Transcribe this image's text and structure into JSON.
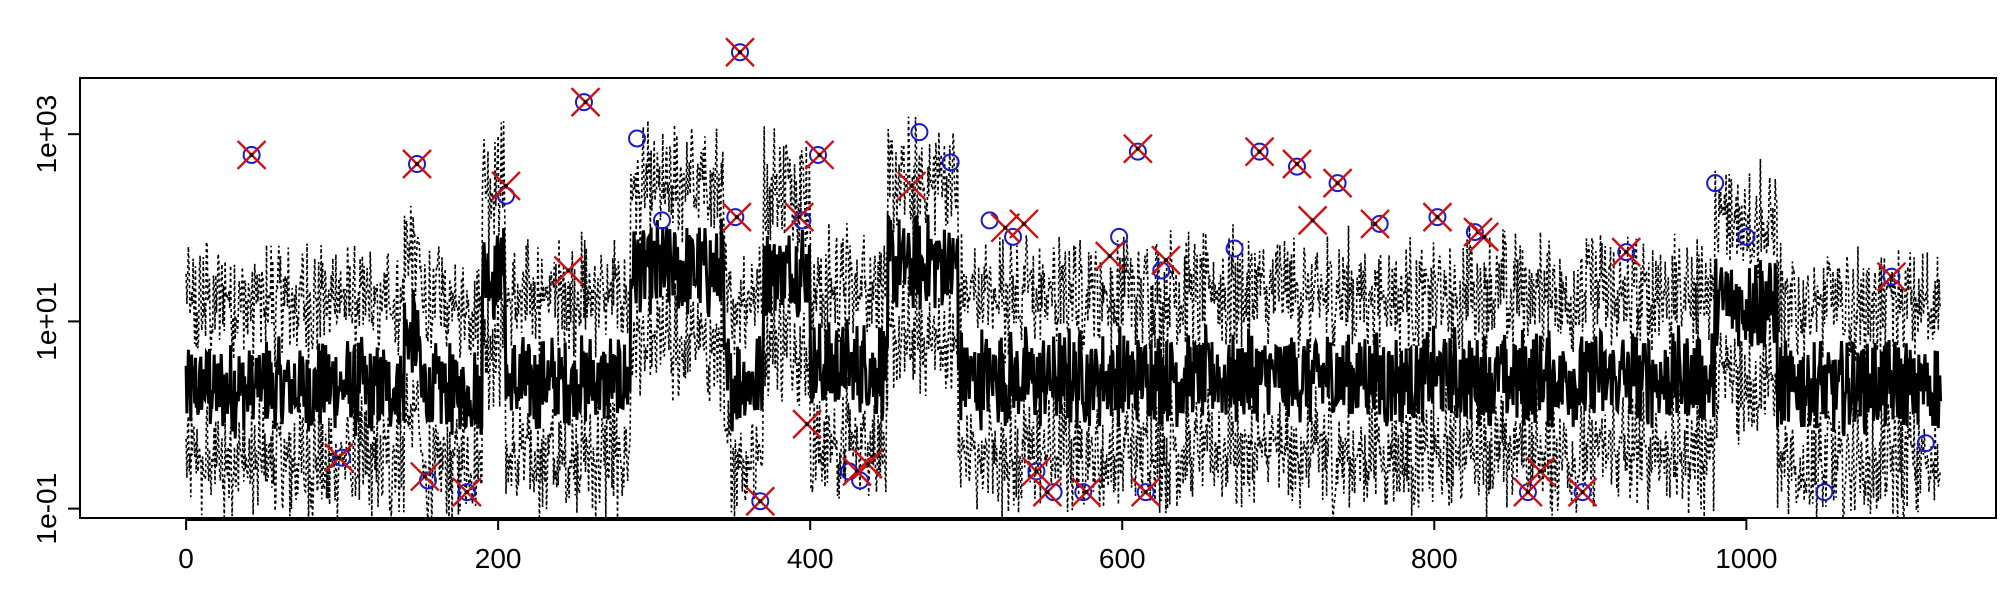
{
  "chart_data": {
    "type": "line",
    "title": "",
    "xlabel": "",
    "ylabel": "",
    "xlim": [
      -68,
      1160
    ],
    "ylim_log10": [
      -1.1,
      3.6
    ],
    "y_scale": "log",
    "x_ticks": [
      0,
      200,
      400,
      600,
      800,
      1000
    ],
    "x_tick_labels": [
      "0",
      "200",
      "400",
      "600",
      "800",
      "1000"
    ],
    "y_ticks": [
      0.1,
      10,
      1000
    ],
    "y_tick_labels": [
      "1e-01",
      "1e+01",
      "1e+03"
    ],
    "grid": false,
    "legend": "none",
    "colors": {
      "series": "#000000",
      "bands": "#000000",
      "circles": "#1a1acc",
      "crosses": "#d01010"
    },
    "series": [
      {
        "style": "solid-thick",
        "segments": [
          {
            "x": [
              0,
              100
            ],
            "logy": 0.3
          },
          {
            "x": [
              100,
              140
            ],
            "logy": 0.3
          },
          {
            "x": [
              140,
              150
            ],
            "logy": 0.85
          },
          {
            "x": [
              150,
              190
            ],
            "logy": 0.25
          },
          {
            "x": [
              190,
              205
            ],
            "logy": 1.55
          },
          {
            "x": [
              205,
              285
            ],
            "logy": 0.35
          },
          {
            "x": [
              285,
              345
            ],
            "logy": 1.55
          },
          {
            "x": [
              345,
              370
            ],
            "logy": 0.35
          },
          {
            "x": [
              370,
              400
            ],
            "logy": 1.55
          },
          {
            "x": [
              400,
              450
            ],
            "logy": 0.5
          },
          {
            "x": [
              450,
              495
            ],
            "logy": 1.6
          },
          {
            "x": [
              495,
              980
            ],
            "logy": 0.4
          },
          {
            "x": [
              980,
              1020
            ],
            "logy": 1.2
          },
          {
            "x": [
              1020,
              1125
            ],
            "logy": 0.3
          }
        ]
      }
    ],
    "bands": {
      "style": "dotted",
      "upper_offset_log10": 0.9,
      "lower_offset_log10": -0.8
    },
    "circles": [
      {
        "x": 42,
        "y": 600
      },
      {
        "x": 100,
        "y": 0.35
      },
      {
        "x": 148,
        "y": 480
      },
      {
        "x": 155,
        "y": 0.2
      },
      {
        "x": 180,
        "y": 0.15
      },
      {
        "x": 205,
        "y": 220
      },
      {
        "x": 255,
        "y": 2200
      },
      {
        "x": 289,
        "y": 900
      },
      {
        "x": 305,
        "y": 120
      },
      {
        "x": 352,
        "y": 130
      },
      {
        "x": 355,
        "y": 7500
      },
      {
        "x": 368,
        "y": 0.12
      },
      {
        "x": 395,
        "y": 120
      },
      {
        "x": 405,
        "y": 600
      },
      {
        "x": 425,
        "y": 0.25
      },
      {
        "x": 432,
        "y": 0.2
      },
      {
        "x": 470,
        "y": 1050
      },
      {
        "x": 490,
        "y": 500
      },
      {
        "x": 515,
        "y": 120
      },
      {
        "x": 530,
        "y": 80
      },
      {
        "x": 545,
        "y": 0.25
      },
      {
        "x": 556,
        "y": 0.15
      },
      {
        "x": 575,
        "y": 0.15
      },
      {
        "x": 598,
        "y": 80
      },
      {
        "x": 610,
        "y": 650
      },
      {
        "x": 615,
        "y": 0.15
      },
      {
        "x": 625,
        "y": 35
      },
      {
        "x": 672,
        "y": 60
      },
      {
        "x": 688,
        "y": 650
      },
      {
        "x": 712,
        "y": 450
      },
      {
        "x": 738,
        "y": 300
      },
      {
        "x": 765,
        "y": 110
      },
      {
        "x": 802,
        "y": 130
      },
      {
        "x": 826,
        "y": 90
      },
      {
        "x": 860,
        "y": 0.15
      },
      {
        "x": 895,
        "y": 0.15
      },
      {
        "x": 923,
        "y": 55
      },
      {
        "x": 980,
        "y": 300
      },
      {
        "x": 1000,
        "y": 80
      },
      {
        "x": 1050,
        "y": 0.15
      },
      {
        "x": 1093,
        "y": 30
      },
      {
        "x": 1115,
        "y": 0.5
      }
    ],
    "crosses": [
      {
        "x": 42,
        "y": 600
      },
      {
        "x": 98,
        "y": 0.35
      },
      {
        "x": 148,
        "y": 480
      },
      {
        "x": 153,
        "y": 0.22
      },
      {
        "x": 180,
        "y": 0.15
      },
      {
        "x": 205,
        "y": 280
      },
      {
        "x": 245,
        "y": 35
      },
      {
        "x": 256,
        "y": 2200
      },
      {
        "x": 353,
        "y": 130
      },
      {
        "x": 355,
        "y": 7500
      },
      {
        "x": 368,
        "y": 0.12
      },
      {
        "x": 393,
        "y": 130
      },
      {
        "x": 398,
        "y": 0.8
      },
      {
        "x": 406,
        "y": 600
      },
      {
        "x": 430,
        "y": 0.25
      },
      {
        "x": 437,
        "y": 0.3
      },
      {
        "x": 465,
        "y": 280
      },
      {
        "x": 525,
        "y": 100
      },
      {
        "x": 537,
        "y": 110
      },
      {
        "x": 545,
        "y": 0.25
      },
      {
        "x": 552,
        "y": 0.15
      },
      {
        "x": 577,
        "y": 0.15
      },
      {
        "x": 592,
        "y": 50
      },
      {
        "x": 610,
        "y": 700
      },
      {
        "x": 615,
        "y": 0.15
      },
      {
        "x": 628,
        "y": 45
      },
      {
        "x": 688,
        "y": 650
      },
      {
        "x": 712,
        "y": 480
      },
      {
        "x": 738,
        "y": 300
      },
      {
        "x": 722,
        "y": 120
      },
      {
        "x": 762,
        "y": 110
      },
      {
        "x": 802,
        "y": 130
      },
      {
        "x": 828,
        "y": 90
      },
      {
        "x": 832,
        "y": 80
      },
      {
        "x": 860,
        "y": 0.15
      },
      {
        "x": 868,
        "y": 0.25
      },
      {
        "x": 895,
        "y": 0.15
      },
      {
        "x": 923,
        "y": 55
      },
      {
        "x": 1093,
        "y": 30
      }
    ]
  }
}
